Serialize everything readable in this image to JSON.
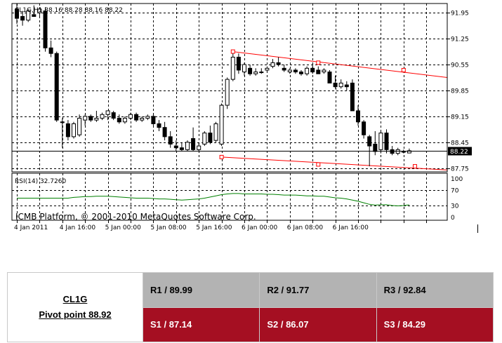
{
  "chart_data": {
    "type": "candlestick",
    "symbol_header": "CL1G,H1  88.16 88.28 88.16 88.22",
    "price_axis": {
      "ticks": [
        91.95,
        91.25,
        90.55,
        89.85,
        89.15,
        88.45,
        87.75
      ],
      "tick_labels": [
        "91.95",
        "91.25",
        "90.55",
        "89.85",
        "89.15",
        "88.45",
        "87.75"
      ],
      "range": [
        87.65,
        92.2
      ],
      "current_price": 88.22,
      "current_price_label": "88.22"
    },
    "x_axis": {
      "tick_labels": [
        "4 Jan 2011",
        "4 Jan 16:00",
        "5 Jan 00:00",
        "5 Jan 08:00",
        "5 Jan 16:00",
        "6 Jan 00:00",
        "6 Jan 08:00",
        "6 Jan 16:00"
      ],
      "tick_bar_index": [
        0,
        8,
        16,
        24,
        32,
        40,
        48,
        56
      ]
    },
    "candles": [
      {
        "o": 92.05,
        "h": 92.2,
        "l": 91.65,
        "c": 91.8
      },
      {
        "o": 91.85,
        "h": 92.0,
        "l": 91.6,
        "c": 91.75
      },
      {
        "o": 91.75,
        "h": 92.05,
        "l": 91.7,
        "c": 92.0
      },
      {
        "o": 91.9,
        "h": 92.15,
        "l": 91.85,
        "c": 91.85
      },
      {
        "o": 91.95,
        "h": 92.1,
        "l": 91.85,
        "c": 92.05
      },
      {
        "o": 92.0,
        "h": 92.1,
        "l": 90.9,
        "c": 91.0
      },
      {
        "o": 91.0,
        "h": 91.2,
        "l": 90.75,
        "c": 90.85
      },
      {
        "o": 90.85,
        "h": 90.9,
        "l": 89.0,
        "c": 89.05
      },
      {
        "o": 89.0,
        "h": 89.1,
        "l": 88.3,
        "c": 89.0
      },
      {
        "o": 88.95,
        "h": 89.05,
        "l": 88.5,
        "c": 88.6
      },
      {
        "o": 88.6,
        "h": 89.0,
        "l": 88.55,
        "c": 88.95
      },
      {
        "o": 88.65,
        "h": 89.2,
        "l": 88.6,
        "c": 89.1
      },
      {
        "o": 89.05,
        "h": 89.2,
        "l": 88.9,
        "c": 89.15
      },
      {
        "o": 89.15,
        "h": 89.2,
        "l": 89.0,
        "c": 89.05
      },
      {
        "o": 89.05,
        "h": 89.3,
        "l": 89.0,
        "c": 89.1
      },
      {
        "o": 89.1,
        "h": 89.25,
        "l": 89.05,
        "c": 89.2
      },
      {
        "o": 89.2,
        "h": 89.3,
        "l": 89.05,
        "c": 89.3
      },
      {
        "o": 89.25,
        "h": 89.3,
        "l": 89.05,
        "c": 89.1
      },
      {
        "o": 89.1,
        "h": 89.2,
        "l": 88.95,
        "c": 89.0
      },
      {
        "o": 89.0,
        "h": 89.15,
        "l": 88.95,
        "c": 89.1
      },
      {
        "o": 89.1,
        "h": 89.25,
        "l": 89.05,
        "c": 89.2
      },
      {
        "o": 89.2,
        "h": 89.25,
        "l": 89.0,
        "c": 89.05
      },
      {
        "o": 89.05,
        "h": 89.15,
        "l": 89.0,
        "c": 89.1
      },
      {
        "o": 89.1,
        "h": 89.2,
        "l": 89.05,
        "c": 89.15
      },
      {
        "o": 89.15,
        "h": 89.2,
        "l": 88.9,
        "c": 88.95
      },
      {
        "o": 88.95,
        "h": 89.05,
        "l": 88.75,
        "c": 88.85
      },
      {
        "o": 88.85,
        "h": 89.0,
        "l": 88.5,
        "c": 88.6
      },
      {
        "o": 88.6,
        "h": 88.75,
        "l": 88.3,
        "c": 88.4
      },
      {
        "o": 88.35,
        "h": 88.5,
        "l": 88.2,
        "c": 88.3
      },
      {
        "o": 88.3,
        "h": 88.45,
        "l": 88.2,
        "c": 88.25
      },
      {
        "o": 88.25,
        "h": 88.5,
        "l": 88.2,
        "c": 88.45
      },
      {
        "o": 88.55,
        "h": 88.85,
        "l": 88.2,
        "c": 88.25
      },
      {
        "o": 88.25,
        "h": 88.45,
        "l": 88.2,
        "c": 88.35
      },
      {
        "o": 88.4,
        "h": 88.75,
        "l": 88.35,
        "c": 88.7
      },
      {
        "o": 88.7,
        "h": 88.9,
        "l": 88.4,
        "c": 88.45
      },
      {
        "o": 88.5,
        "h": 89.0,
        "l": 88.45,
        "c": 88.95
      },
      {
        "o": 88.4,
        "h": 89.5,
        "l": 88.35,
        "c": 89.45
      },
      {
        "o": 89.45,
        "h": 90.2,
        "l": 89.35,
        "c": 90.15
      },
      {
        "o": 90.15,
        "h": 90.85,
        "l": 90.1,
        "c": 90.75
      },
      {
        "o": 90.75,
        "h": 90.85,
        "l": 90.3,
        "c": 90.4
      },
      {
        "o": 90.35,
        "h": 90.6,
        "l": 90.25,
        "c": 90.55
      },
      {
        "o": 90.45,
        "h": 90.55,
        "l": 90.25,
        "c": 90.3
      },
      {
        "o": 90.3,
        "h": 90.45,
        "l": 90.25,
        "c": 90.35
      },
      {
        "o": 90.35,
        "h": 90.45,
        "l": 90.3,
        "c": 90.35
      },
      {
        "o": 90.4,
        "h": 90.5,
        "l": 90.35,
        "c": 90.45
      },
      {
        "o": 90.5,
        "h": 90.7,
        "l": 90.45,
        "c": 90.6
      },
      {
        "o": 90.6,
        "h": 90.75,
        "l": 90.5,
        "c": 90.55
      },
      {
        "o": 90.45,
        "h": 90.55,
        "l": 90.35,
        "c": 90.4
      },
      {
        "o": 90.35,
        "h": 90.45,
        "l": 90.3,
        "c": 90.4
      },
      {
        "o": 90.4,
        "h": 90.45,
        "l": 90.3,
        "c": 90.35
      },
      {
        "o": 90.35,
        "h": 90.4,
        "l": 90.25,
        "c": 90.3
      },
      {
        "o": 90.3,
        "h": 90.5,
        "l": 90.25,
        "c": 90.45
      },
      {
        "o": 90.45,
        "h": 90.55,
        "l": 90.3,
        "c": 90.35
      },
      {
        "o": 90.4,
        "h": 90.5,
        "l": 90.3,
        "c": 90.3
      },
      {
        "o": 90.35,
        "h": 90.45,
        "l": 90.3,
        "c": 90.4
      },
      {
        "o": 90.35,
        "h": 90.4,
        "l": 90.05,
        "c": 90.05
      },
      {
        "o": 90.05,
        "h": 90.25,
        "l": 89.9,
        "c": 89.95
      },
      {
        "o": 89.95,
        "h": 90.15,
        "l": 89.9,
        "c": 90.05
      },
      {
        "o": 90.0,
        "h": 90.1,
        "l": 89.85,
        "c": 89.95
      },
      {
        "o": 90.05,
        "h": 90.15,
        "l": 89.3,
        "c": 89.3
      },
      {
        "o": 89.3,
        "h": 89.45,
        "l": 88.9,
        "c": 89.0
      },
      {
        "o": 89.0,
        "h": 89.05,
        "l": 88.55,
        "c": 88.65
      },
      {
        "o": 88.6,
        "h": 88.65,
        "l": 87.8,
        "c": 88.35
      },
      {
        "o": 88.4,
        "h": 88.75,
        "l": 88.1,
        "c": 88.2
      },
      {
        "o": 88.25,
        "h": 88.75,
        "l": 88.15,
        "c": 88.7
      },
      {
        "o": 88.7,
        "h": 88.8,
        "l": 88.15,
        "c": 88.25
      },
      {
        "o": 88.25,
        "h": 88.35,
        "l": 88.1,
        "c": 88.15
      },
      {
        "o": 88.15,
        "h": 88.3,
        "l": 88.1,
        "c": 88.25
      },
      {
        "o": 88.2,
        "h": 88.25,
        "l": 88.15,
        "c": 88.2
      },
      {
        "o": 88.16,
        "h": 88.28,
        "l": 88.16,
        "c": 88.22
      }
    ],
    "trendlines": [
      {
        "name": "upper",
        "p1": {
          "bar": 38,
          "price": 90.9
        },
        "p2": {
          "bar": 86,
          "price": 90.2
        },
        "markers": [
          {
            "bar": 38,
            "price": 90.9
          },
          {
            "bar": 53,
            "price": 90.6
          },
          {
            "bar": 68,
            "price": 90.4
          }
        ]
      },
      {
        "name": "lower",
        "p1": {
          "bar": 36,
          "price": 88.05
        },
        "p2": {
          "bar": 79,
          "price": 87.7
        },
        "markers": [
          {
            "bar": 36,
            "price": 88.05
          },
          {
            "bar": 53,
            "price": 87.85
          },
          {
            "bar": 70,
            "price": 87.8
          }
        ]
      }
    ],
    "rsi": {
      "label": "RSI(14) 32.7260",
      "range": [
        0,
        100
      ],
      "tick_values": [
        100,
        70,
        30,
        0
      ],
      "tick_labels": [
        "100",
        "70",
        "30",
        "0"
      ],
      "levels": [
        70,
        30
      ],
      "values": [
        50,
        50,
        50,
        50,
        50,
        50,
        50,
        50,
        50,
        50,
        52,
        53,
        54,
        54,
        55,
        55,
        55,
        54,
        53,
        52,
        51,
        50,
        50,
        50,
        49,
        48,
        48,
        47,
        46,
        45,
        46,
        47,
        48,
        50,
        53,
        56,
        59,
        61,
        62,
        62,
        61,
        61,
        61,
        61,
        60,
        60,
        59,
        58,
        58,
        58,
        57,
        56,
        56,
        55,
        55,
        53,
        51,
        50,
        48,
        45,
        42,
        38,
        34,
        32,
        33,
        33,
        31,
        30,
        31,
        32.73
      ]
    },
    "watermark": "ICMB Platform, © 2001-2010 MetaQuotes Software Corp."
  },
  "pivot_table": {
    "symbol": "CL1G",
    "pivot_label": "Pivot point 88.92",
    "resistance": [
      "R1 / 89.99",
      "R2  / 91.77",
      "R3 / 92.84"
    ],
    "support": [
      "S1 / 87.14",
      "S2 / 86.07",
      "S3 / 84.29"
    ]
  },
  "colors": {
    "chart_background": "#ffffff",
    "grid": "#000000",
    "trendline": "#ff0000",
    "rsi_line": "#008000",
    "resistance_row": "#b3b3b3",
    "support_row": "#a50f22"
  }
}
